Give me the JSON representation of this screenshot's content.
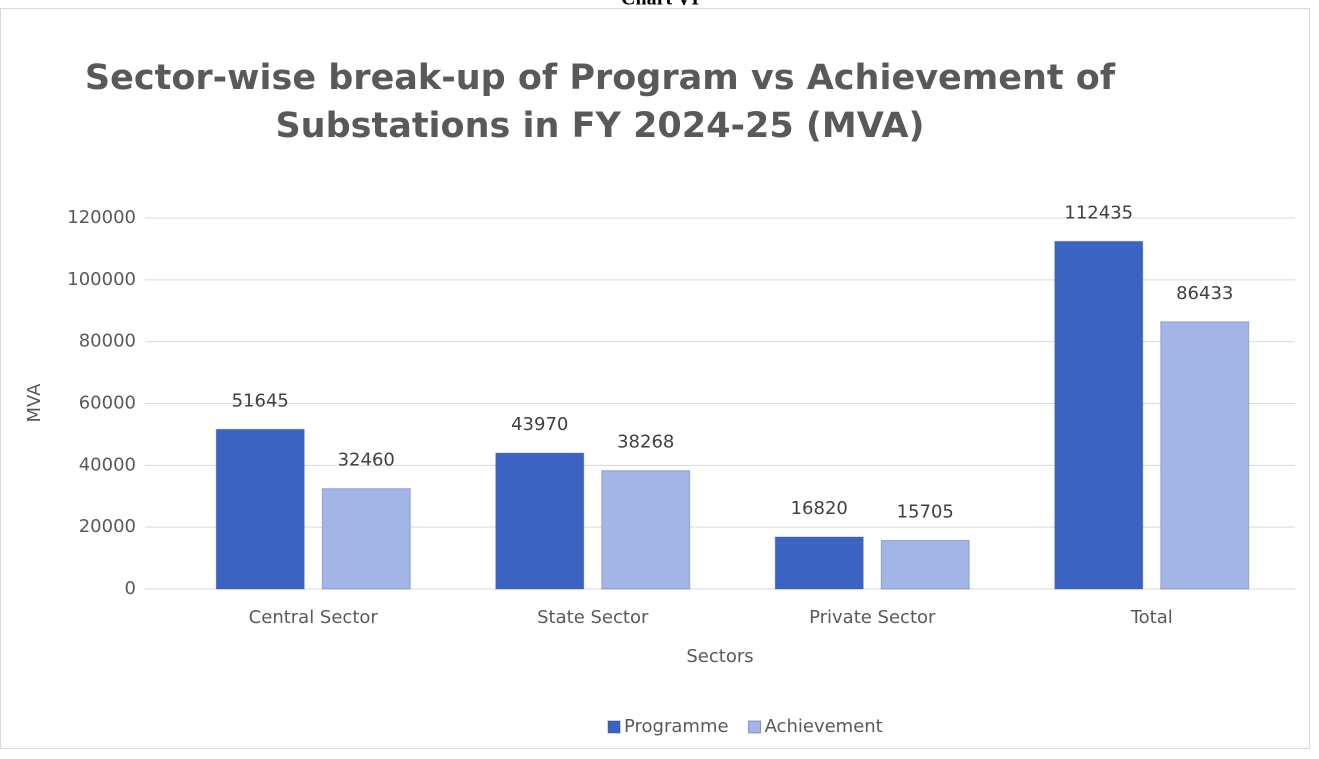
{
  "header": "Chart VI",
  "chart_data": {
    "type": "bar",
    "title": [
      "Sector-wise break-up of Program vs Achievement of",
      "Substations in FY 2024-25 (MVA)"
    ],
    "x_label": "Sectors",
    "y_label": "MVA",
    "categories": [
      "Central Sector",
      "State Sector",
      "Private Sector",
      "Total"
    ],
    "series": [
      {
        "name": "Programme",
        "color": "#3b64c2",
        "values": [
          51645,
          43970,
          16820,
          112435
        ]
      },
      {
        "name": "Achievement",
        "color": "#a2b5e6",
        "values": [
          32460,
          38268,
          15705,
          86433
        ]
      }
    ],
    "ylim": [
      0,
      120000
    ],
    "yticks": [
      0,
      20000,
      40000,
      60000,
      80000,
      100000,
      120000
    ],
    "grid": true,
    "legend": "bottom"
  }
}
